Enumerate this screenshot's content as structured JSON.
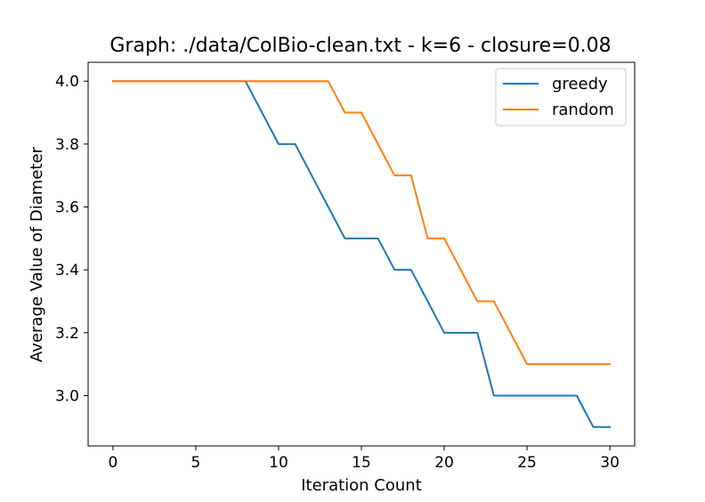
{
  "chart_data": {
    "type": "line",
    "title": "Graph: ./data/ColBio-clean.txt - k=6 - closure=0.08",
    "xlabel": "Iteration Count",
    "ylabel": "Average Value of Diameter",
    "xlim": [
      -1.5,
      31.5
    ],
    "ylim": [
      2.84,
      4.06
    ],
    "xticks": [
      0,
      5,
      10,
      15,
      20,
      25,
      30
    ],
    "yticks": [
      3.0,
      3.2,
      3.4,
      3.6,
      3.8,
      4.0
    ],
    "xtick_labels": [
      "0",
      "5",
      "10",
      "15",
      "20",
      "25",
      "30"
    ],
    "ytick_labels": [
      "3.0",
      "3.2",
      "3.4",
      "3.6",
      "3.8",
      "4.0"
    ],
    "grid": false,
    "legend_position": "top-right",
    "x": [
      0,
      1,
      2,
      3,
      4,
      5,
      6,
      7,
      8,
      9,
      10,
      11,
      12,
      13,
      14,
      15,
      16,
      17,
      18,
      19,
      20,
      21,
      22,
      23,
      24,
      25,
      26,
      27,
      28,
      29,
      30
    ],
    "series": [
      {
        "name": "greedy",
        "color": "#1f77b4",
        "values": [
          4.0,
          4.0,
          4.0,
          4.0,
          4.0,
          4.0,
          4.0,
          4.0,
          4.0,
          3.9,
          3.8,
          3.8,
          3.7,
          3.6,
          3.5,
          3.5,
          3.5,
          3.4,
          3.4,
          3.3,
          3.2,
          3.2,
          3.2,
          3.0,
          3.0,
          3.0,
          3.0,
          3.0,
          3.0,
          2.9,
          2.9
        ]
      },
      {
        "name": "random",
        "color": "#ff7f0e",
        "values": [
          4.0,
          4.0,
          4.0,
          4.0,
          4.0,
          4.0,
          4.0,
          4.0,
          4.0,
          4.0,
          4.0,
          4.0,
          4.0,
          4.0,
          3.9,
          3.9,
          3.8,
          3.7,
          3.7,
          3.5,
          3.5,
          3.4,
          3.3,
          3.3,
          3.2,
          3.1,
          3.1,
          3.1,
          3.1,
          3.1,
          3.1
        ]
      }
    ]
  }
}
